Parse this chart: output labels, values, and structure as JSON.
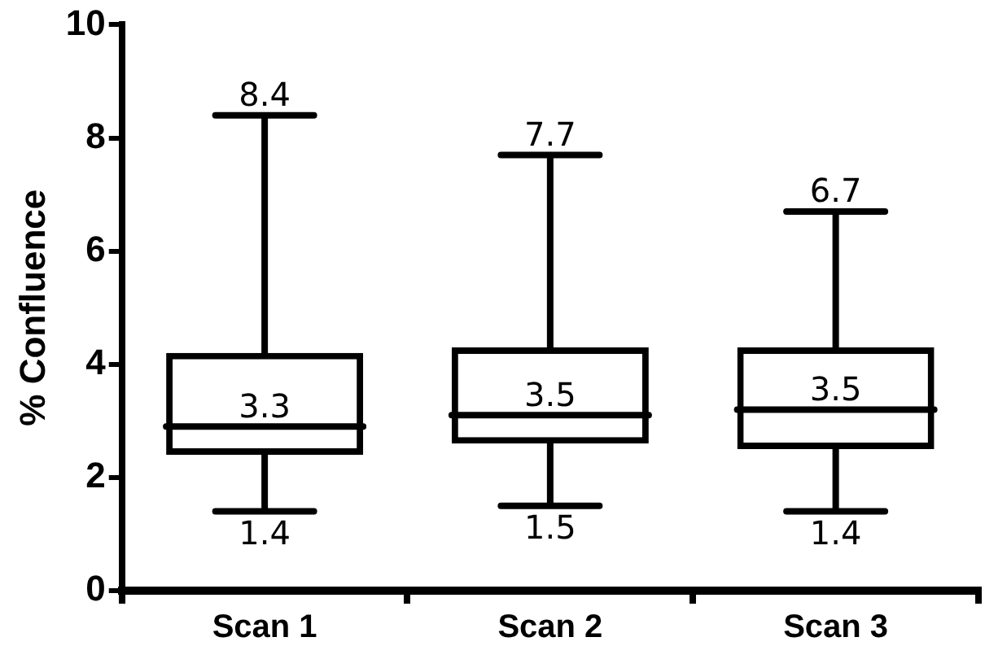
{
  "chart_data": {
    "type": "box",
    "ylabel": "% Confluence",
    "categories": [
      "Scan 1",
      "Scan 2",
      "Scan 3"
    ],
    "color": "#000000",
    "boxes": [
      {
        "low": 1.4,
        "q1": 2.4,
        "median": 2.9,
        "q3": 4.2,
        "high": 8.4
      },
      {
        "low": 1.5,
        "q1": 2.6,
        "median": 3.1,
        "q3": 4.3,
        "high": 7.7
      },
      {
        "low": 1.4,
        "q1": 2.5,
        "median": 3.2,
        "q3": 4.3,
        "high": 6.7
      }
    ],
    "ylim": [
      0,
      10
    ],
    "yticks": [
      0,
      2,
      4,
      6,
      8,
      10
    ],
    "grid": false,
    "legend": false,
    "annotations": [
      {
        "text": "8.4",
        "x": "Scan 1",
        "y": 8.4
      },
      "3.3",
      {
        "text": "1.4",
        "x": "Scan 1",
        "y": 1.4
      },
      {
        "text": "7.7",
        "x": "Scan 2",
        "y": 7.7
      },
      "3.5",
      {
        "text": "1.5",
        "x": "Scan 2",
        "y": 1.5
      },
      {
        "text": "6.7",
        "x": "Scan 3",
        "y": 6.7
      },
      "3.5",
      {
        "text": "1.4",
        "x": "Scan 3",
        "y": 1.4
      }
    ]
  }
}
